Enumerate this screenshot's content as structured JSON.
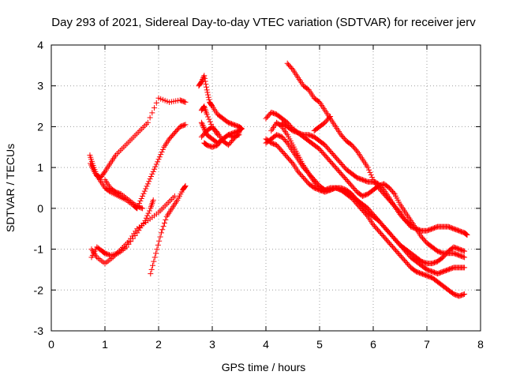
{
  "chart_data": {
    "type": "scatter",
    "title": "Day 293 of 2021, Sidereal Day-to-day VTEC variation (SDTVAR) for receiver jerv",
    "xlabel": "GPS time / hours",
    "ylabel": "SDTVAR / TECUs",
    "xlim": [
      0,
      8
    ],
    "ylim": [
      -3,
      4
    ],
    "x_ticks": [
      "0",
      "1",
      "2",
      "3",
      "4",
      "5",
      "6",
      "7",
      "8"
    ],
    "y_ticks": [
      "-3",
      "-2",
      "-1",
      "0",
      "1",
      "2",
      "3",
      "4"
    ],
    "grid": true,
    "marker": "+",
    "color": "#ff0000",
    "series": [
      {
        "x": [
          0.72,
          0.78,
          0.85,
          0.92,
          1.0,
          1.1,
          1.2,
          1.35,
          1.5,
          1.65,
          1.8,
          2.0,
          2.2,
          2.4,
          2.5
        ],
        "y": [
          1.3,
          1.05,
          0.8,
          0.75,
          0.9,
          1.1,
          1.3,
          1.5,
          1.7,
          1.9,
          2.1,
          2.7,
          2.6,
          2.65,
          2.6
        ]
      },
      {
        "x": [
          0.73,
          0.8,
          0.9,
          1.0,
          1.1,
          1.25,
          1.4,
          1.55,
          1.6,
          1.7,
          1.8,
          1.9,
          2.0,
          2.1,
          2.2,
          2.3,
          2.4,
          2.5
        ],
        "y": [
          1.1,
          0.9,
          0.7,
          0.5,
          0.4,
          0.3,
          0.2,
          0.05,
          0.0,
          0.3,
          0.6,
          0.9,
          1.2,
          1.5,
          1.7,
          1.85,
          2.0,
          2.05
        ]
      },
      {
        "x": [
          0.75,
          0.85,
          1.0,
          1.15,
          1.3,
          1.45,
          1.6,
          1.8,
          2.0,
          2.15,
          2.3
        ],
        "y": [
          -1.0,
          -1.2,
          -1.35,
          -1.2,
          -1.0,
          -0.8,
          -0.5,
          -0.3,
          -0.1,
          0.1,
          0.3
        ]
      },
      {
        "x": [
          0.75,
          0.85,
          0.95,
          1.0,
          1.1,
          1.25,
          1.4,
          1.6,
          1.75,
          1.85,
          1.9
        ],
        "y": [
          -1.2,
          -0.95,
          -1.05,
          -1.1,
          -1.15,
          -1.1,
          -0.95,
          -0.6,
          -0.3,
          0.0,
          0.2
        ]
      },
      {
        "x": [
          1.0,
          1.1,
          1.2,
          1.3,
          1.45,
          1.6,
          1.7
        ],
        "y": [
          0.7,
          0.5,
          0.4,
          0.35,
          0.2,
          0.05,
          0.0
        ]
      },
      {
        "x": [
          1.85,
          1.95,
          2.05,
          2.15,
          2.25,
          2.35,
          2.45,
          2.5
        ],
        "y": [
          -1.6,
          -1.1,
          -0.6,
          -0.2,
          0.0,
          0.2,
          0.45,
          0.55
        ]
      },
      {
        "x": [
          2.75,
          2.8,
          2.85,
          2.9,
          2.95,
          3.0,
          3.1,
          3.2,
          3.3,
          3.4,
          3.5,
          3.55
        ],
        "y": [
          3.0,
          3.1,
          3.25,
          2.9,
          2.6,
          2.5,
          2.3,
          2.2,
          2.1,
          2.05,
          2.0,
          1.95
        ]
      },
      {
        "x": [
          2.8,
          2.85,
          2.9,
          3.0,
          3.1,
          3.2,
          3.3,
          3.4,
          3.5,
          3.55
        ],
        "y": [
          2.1,
          1.95,
          1.8,
          1.7,
          1.6,
          1.7,
          1.8,
          1.85,
          1.9,
          1.95
        ]
      },
      {
        "x": [
          2.8,
          2.9,
          3.0,
          3.1,
          3.2,
          3.3,
          3.4,
          3.5
        ],
        "y": [
          1.75,
          1.9,
          2.0,
          1.85,
          1.65,
          1.55,
          1.7,
          1.85
        ]
      },
      {
        "x": [
          2.85,
          2.9,
          3.0,
          3.1,
          3.2,
          3.3,
          3.4,
          3.5
        ],
        "y": [
          1.6,
          1.55,
          1.5,
          1.55,
          1.7,
          1.8,
          1.75,
          1.8
        ]
      },
      {
        "x": [
          2.8,
          2.85,
          2.9,
          3.0,
          3.1
        ],
        "y": [
          2.4,
          2.5,
          2.3,
          2.0,
          1.8
        ]
      },
      {
        "x": [
          4.4,
          4.5,
          4.6,
          4.7,
          4.8,
          4.9,
          5.0,
          5.1,
          5.2,
          5.3,
          5.4,
          5.5,
          5.6,
          5.7,
          5.8,
          5.9,
          6.0,
          6.1,
          6.2,
          6.3,
          6.4,
          6.5,
          6.6,
          6.7,
          6.8,
          6.9,
          7.0,
          7.1,
          7.2,
          7.3,
          7.4,
          7.5,
          7.6,
          7.7,
          7.75
        ],
        "y": [
          3.55,
          3.4,
          3.2,
          3.0,
          2.9,
          2.7,
          2.6,
          2.4,
          2.2,
          2.0,
          1.8,
          1.65,
          1.55,
          1.4,
          1.2,
          1.0,
          0.7,
          0.5,
          0.35,
          0.2,
          0.05,
          -0.1,
          -0.3,
          -0.45,
          -0.5,
          -0.55,
          -0.55,
          -0.5,
          -0.45,
          -0.45,
          -0.45,
          -0.5,
          -0.55,
          -0.6,
          -0.65
        ]
      },
      {
        "x": [
          4.0,
          4.1,
          4.2,
          4.3,
          4.4,
          4.5,
          4.6,
          4.7,
          4.8,
          4.9,
          5.0,
          5.1,
          5.2,
          5.3,
          5.4,
          5.5,
          5.6,
          5.7,
          5.8,
          5.9,
          6.0,
          6.1,
          6.2,
          6.3,
          6.4,
          6.5,
          6.6,
          6.7,
          6.8,
          6.9,
          7.0,
          7.1,
          7.2,
          7.3,
          7.4,
          7.5,
          7.6,
          7.7
        ],
        "y": [
          2.2,
          2.35,
          2.3,
          2.2,
          2.1,
          1.95,
          1.85,
          1.75,
          1.65,
          1.55,
          1.45,
          1.3,
          1.15,
          1.0,
          0.85,
          0.7,
          0.55,
          0.4,
          0.3,
          0.35,
          0.45,
          0.55,
          0.6,
          0.5,
          0.35,
          0.1,
          -0.1,
          -0.3,
          -0.5,
          -0.7,
          -0.85,
          -0.95,
          -1.05,
          -1.1,
          -1.1,
          -1.1,
          -1.15,
          -1.2
        ]
      },
      {
        "x": [
          4.0,
          4.1,
          4.2,
          4.3,
          4.4,
          4.5,
          4.6,
          4.7,
          4.8,
          4.9,
          5.0,
          5.1,
          5.2,
          5.3,
          5.4,
          5.5,
          5.6,
          5.7,
          5.8,
          5.9,
          6.0,
          6.1,
          6.2,
          6.3,
          6.4,
          6.5,
          6.6,
          6.7,
          6.8,
          6.9,
          7.0,
          7.1,
          7.2,
          7.3,
          7.4,
          7.5,
          7.6,
          7.7
        ],
        "y": [
          1.7,
          1.6,
          1.55,
          1.4,
          1.25,
          1.1,
          0.9,
          0.75,
          0.6,
          0.5,
          0.45,
          0.45,
          0.5,
          0.5,
          0.45,
          0.4,
          0.3,
          0.2,
          0.05,
          -0.1,
          -0.2,
          -0.3,
          -0.45,
          -0.6,
          -0.75,
          -0.9,
          -1.05,
          -1.2,
          -1.3,
          -1.4,
          -1.5,
          -1.55,
          -1.6,
          -1.55,
          -1.5,
          -1.45,
          -1.45,
          -1.45
        ]
      },
      {
        "x": [
          4.0,
          4.1,
          4.2,
          4.3,
          4.4,
          4.5,
          4.6,
          4.7,
          4.8,
          4.9,
          5.0,
          5.1,
          5.2,
          5.3,
          5.4,
          5.5,
          5.6,
          5.7,
          5.8,
          5.9,
          6.0,
          6.1,
          6.2,
          6.3,
          6.4,
          6.5,
          6.6,
          6.7,
          6.8,
          6.9,
          7.0,
          7.1,
          7.2,
          7.3,
          7.4,
          7.5,
          7.6,
          7.7
        ],
        "y": [
          1.6,
          1.7,
          1.8,
          1.75,
          1.6,
          1.4,
          1.2,
          1.0,
          0.85,
          0.7,
          0.55,
          0.45,
          0.45,
          0.5,
          0.45,
          0.35,
          0.25,
          0.1,
          -0.05,
          -0.2,
          -0.4,
          -0.55,
          -0.7,
          -0.85,
          -1.0,
          -1.15,
          -1.3,
          -1.45,
          -1.55,
          -1.6,
          -1.65,
          -1.7,
          -1.8,
          -1.9,
          -2.0,
          -2.1,
          -2.15,
          -2.1
        ]
      },
      {
        "x": [
          4.1,
          4.2,
          4.3,
          4.4,
          4.5,
          4.6,
          4.7,
          4.8,
          4.9,
          5.0,
          5.1,
          5.2,
          5.3,
          5.4,
          5.5,
          5.6,
          5.7,
          5.8,
          5.9,
          6.0,
          6.1,
          6.2,
          6.3,
          6.4,
          6.5,
          6.6,
          6.7,
          6.8,
          6.9,
          7.0,
          7.1,
          7.2,
          7.3,
          7.4,
          7.5,
          7.6,
          7.7
        ],
        "y": [
          1.9,
          2.1,
          2.0,
          1.8,
          1.55,
          1.3,
          1.05,
          0.85,
          0.65,
          0.45,
          0.4,
          0.45,
          0.5,
          0.5,
          0.45,
          0.35,
          0.2,
          0.1,
          0.0,
          -0.15,
          -0.3,
          -0.45,
          -0.6,
          -0.75,
          -0.9,
          -1.0,
          -1.1,
          -1.2,
          -1.3,
          -1.35,
          -1.35,
          -1.3,
          -1.2,
          -1.05,
          -0.95,
          -1.0,
          -1.05
        ]
      },
      {
        "x": [
          4.3,
          4.4,
          4.5,
          4.6,
          4.7,
          4.8,
          4.9,
          5.0,
          5.1,
          5.2,
          5.3,
          5.4,
          5.5,
          5.6,
          5.7,
          5.8,
          5.9,
          6.0,
          6.1,
          6.2,
          6.3,
          6.4,
          6.5,
          6.6,
          6.7
        ],
        "y": [
          2.1,
          2.0,
          1.9,
          1.85,
          1.8,
          1.8,
          1.75,
          1.65,
          1.55,
          1.4,
          1.25,
          1.1,
          0.95,
          0.85,
          0.75,
          0.7,
          0.65,
          0.65,
          0.6,
          0.45,
          0.25,
          0.05,
          -0.15,
          -0.3,
          -0.4
        ]
      },
      {
        "x": [
          4.9,
          5.0,
          5.1,
          5.2
        ],
        "y": [
          1.9,
          2.0,
          2.1,
          2.25
        ]
      }
    ]
  }
}
